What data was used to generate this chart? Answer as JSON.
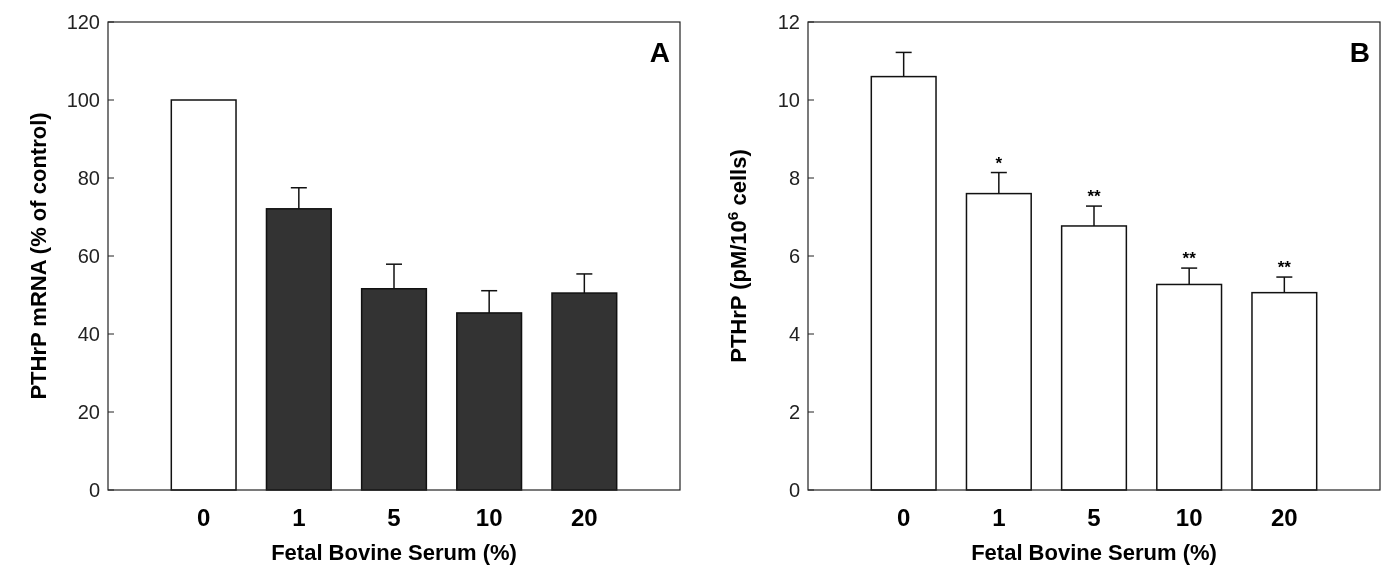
{
  "chart_data": [
    {
      "type": "bar",
      "xlabel": "Fetal Bovine Serum (%)",
      "ylabel": "PTHrP mRNA (% of control)",
      "categories": [
        "0",
        "1",
        "5",
        "10",
        "20"
      ],
      "values": [
        100,
        72.1,
        51.6,
        45.4,
        50.5
      ],
      "colors": [
        "#ffffff",
        "#333333",
        "#333333",
        "#333333",
        "#333333"
      ],
      "errors": [
        null,
        [
          72.1,
          77.5
        ],
        [
          51.6,
          57.9
        ],
        [
          45.4,
          51.1
        ],
        [
          50.5,
          55.4
        ]
      ],
      "ylim": [
        0,
        120
      ],
      "yticks": [
        0,
        20,
        40,
        60,
        80,
        100,
        120
      ],
      "grid": false,
      "annotations": [
        "A"
      ]
    },
    {
      "type": "bar",
      "xlabel": "Fetal Bovine Serum (%)",
      "ylabel": "PTHrP (pM/10$^{6}$ cells)",
      "categories": [
        "0",
        "1",
        "5",
        "10",
        "20"
      ],
      "values": [
        10.6,
        7.6,
        6.77,
        5.27,
        5.06
      ],
      "colors": [
        "#ffffff",
        "#ffffff",
        "#ffffff",
        "#ffffff",
        "#ffffff"
      ],
      "errors": [
        [
          10.6,
          11.22
        ],
        [
          7.6,
          8.14
        ],
        [
          6.77,
          7.28
        ],
        [
          5.27,
          5.69
        ],
        [
          5.06,
          5.46
        ]
      ],
      "ylim": [
        0,
        12
      ],
      "yticks": [
        0,
        2,
        4,
        6,
        8,
        10,
        12
      ],
      "grid": false,
      "annotations": [
        "B",
        {
          "text": "*",
          "x": "1",
          "y": 8.14
        },
        {
          "text": "**",
          "x": "5",
          "y": 7.28
        },
        {
          "text": "**",
          "x": "10",
          "y": 5.69
        },
        {
          "text": "**",
          "x": "20",
          "y": 5.46
        }
      ]
    }
  ]
}
